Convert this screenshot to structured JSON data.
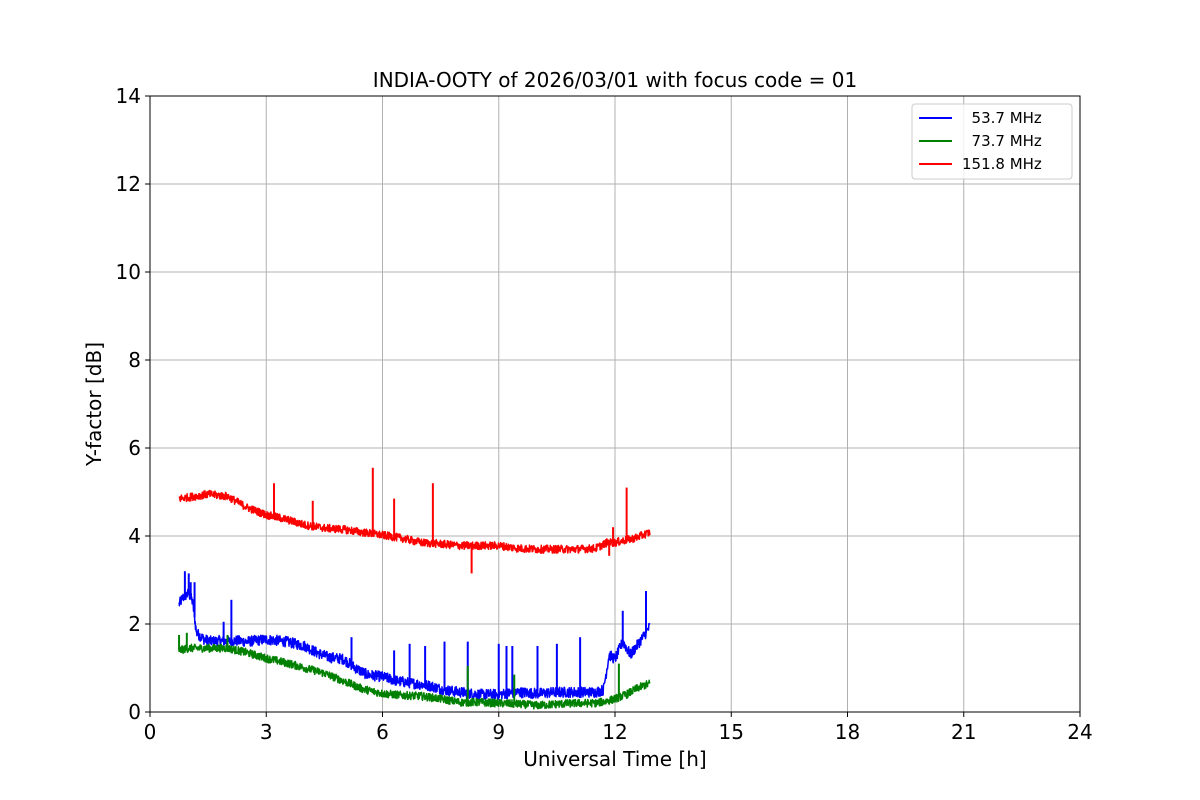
{
  "chart_data": {
    "type": "line",
    "title": "INDIA-OOTY of 2026/03/01 with focus code = 01",
    "xlabel": "Universal Time [h]",
    "ylabel": "Y-factor [dB]",
    "xlim": [
      0,
      24
    ],
    "ylim": [
      0,
      14
    ],
    "xticks": [
      0,
      3,
      6,
      9,
      12,
      15,
      18,
      21,
      24
    ],
    "yticks": [
      0,
      2,
      4,
      6,
      8,
      10,
      12,
      14
    ],
    "grid": true,
    "legend_position": "top-right",
    "series": [
      {
        "name": "53.7 MHz",
        "legend_label": "  53.7 MHz",
        "color": "#0000ff",
        "x": [
          0.75,
          0.85,
          1.0,
          1.1,
          1.2,
          1.4,
          1.6,
          1.8,
          2.0,
          2.2,
          2.5,
          3.0,
          3.5,
          4.0,
          4.3,
          4.6,
          5.0,
          5.3,
          5.6,
          6.0,
          6.4,
          6.8,
          7.2,
          7.6,
          8.0,
          8.5,
          9.0,
          9.5,
          10.0,
          10.5,
          11.0,
          11.5,
          11.7,
          11.85,
          12.0,
          12.2,
          12.4,
          12.6,
          12.8,
          12.9
        ],
        "y": [
          2.45,
          2.6,
          2.7,
          2.5,
          1.8,
          1.65,
          1.6,
          1.62,
          1.6,
          1.62,
          1.6,
          1.65,
          1.6,
          1.5,
          1.35,
          1.25,
          1.2,
          1.0,
          0.85,
          0.8,
          0.7,
          0.65,
          0.6,
          0.5,
          0.45,
          0.4,
          0.4,
          0.45,
          0.42,
          0.45,
          0.45,
          0.45,
          0.5,
          1.3,
          1.2,
          1.6,
          1.3,
          1.55,
          1.8,
          1.95
        ]
      },
      {
        "name": "73.7 MHz",
        "legend_label": "  73.7 MHz",
        "color": "#008000",
        "x": [
          0.75,
          1.0,
          1.5,
          2.0,
          2.5,
          3.0,
          3.5,
          4.0,
          4.5,
          5.0,
          5.5,
          6.0,
          6.5,
          7.0,
          7.5,
          8.0,
          8.5,
          9.0,
          9.5,
          10.0,
          10.5,
          11.0,
          11.5,
          11.8,
          12.0,
          12.3,
          12.6,
          12.9
        ],
        "y": [
          1.4,
          1.45,
          1.45,
          1.45,
          1.35,
          1.22,
          1.12,
          1.0,
          0.88,
          0.7,
          0.52,
          0.42,
          0.38,
          0.36,
          0.3,
          0.22,
          0.22,
          0.2,
          0.18,
          0.15,
          0.18,
          0.2,
          0.2,
          0.25,
          0.3,
          0.4,
          0.55,
          0.65
        ]
      },
      {
        "name": "151.8 MHz",
        "legend_label": "151.8 MHz",
        "color": "#ff0000",
        "x": [
          0.75,
          1.0,
          1.5,
          2.0,
          2.5,
          3.0,
          3.5,
          4.0,
          4.5,
          5.0,
          5.5,
          6.0,
          6.5,
          7.0,
          7.5,
          8.0,
          8.5,
          9.0,
          9.5,
          10.0,
          10.5,
          11.0,
          11.5,
          11.8,
          12.0,
          12.5,
          12.9
        ],
        "y": [
          4.85,
          4.88,
          4.95,
          4.9,
          4.65,
          4.48,
          4.38,
          4.25,
          4.18,
          4.15,
          4.08,
          4.02,
          3.95,
          3.85,
          3.82,
          3.78,
          3.78,
          3.78,
          3.72,
          3.7,
          3.7,
          3.7,
          3.72,
          3.85,
          3.85,
          3.95,
          4.08
        ]
      }
    ],
    "spikes": [
      {
        "series": "53.7 MHz",
        "x": [
          0.9,
          1.0,
          1.05,
          1.15,
          1.9,
          2.1,
          5.2,
          6.3,
          6.7,
          7.1,
          7.6,
          8.2,
          9.0,
          9.2,
          9.35,
          10.0,
          10.5,
          11.1,
          12.2,
          12.8
        ],
        "y": [
          3.2,
          3.15,
          2.95,
          2.95,
          2.05,
          2.55,
          1.7,
          1.4,
          1.55,
          1.5,
          1.6,
          1.6,
          1.55,
          1.5,
          1.5,
          1.5,
          1.55,
          1.7,
          2.3,
          2.75
        ]
      },
      {
        "series": "73.7 MHz",
        "x": [
          0.75,
          0.95,
          2.0,
          8.2,
          9.4,
          12.1
        ],
        "y": [
          1.75,
          1.8,
          1.75,
          1.05,
          0.85,
          1.1
        ]
      },
      {
        "series": "151.8 MHz",
        "x": [
          3.2,
          4.2,
          5.75,
          6.3,
          7.3,
          8.3,
          11.85,
          11.95,
          12.3
        ],
        "y": [
          5.2,
          4.8,
          5.55,
          4.85,
          5.2,
          3.15,
          3.55,
          4.2,
          5.1
        ]
      }
    ]
  }
}
